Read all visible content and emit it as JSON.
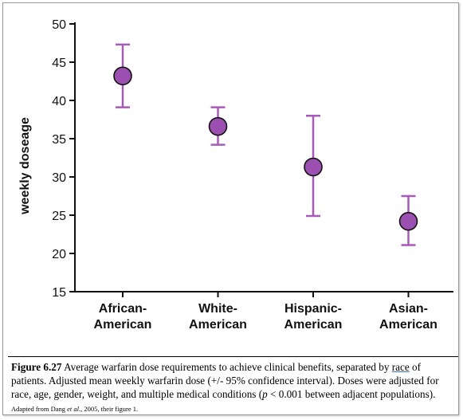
{
  "chart_data": {
    "type": "scatter",
    "title": "",
    "xlabel": "",
    "ylabel": "weekly doseage",
    "ylim": [
      15,
      50
    ],
    "yticks": [
      15,
      20,
      25,
      30,
      35,
      40,
      45,
      50
    ],
    "grid": false,
    "categories": [
      [
        "African-",
        "American"
      ],
      [
        "White-",
        "American"
      ],
      [
        "Hispanic-",
        "American"
      ],
      [
        "Asian-",
        "American"
      ]
    ],
    "series": [
      {
        "values": [
          43.2,
          36.6,
          31.3,
          24.2
        ],
        "ci_low": [
          39.1,
          34.2,
          24.9,
          21.1
        ],
        "ci_high": [
          47.3,
          39.1,
          38.0,
          27.5
        ]
      }
    ],
    "colors": {
      "marker": "#9b4fb0",
      "errorbar": "#a85ab8",
      "axis": "#111111"
    }
  },
  "caption": {
    "label": "Figure 6.27",
    "text1": " Average warfarin dose requirements to achieve clinical benefits, separated by ",
    "underlined": "race",
    "text2": "  of patients. Adjusted mean weekly warfarin dose (+/- 95% confidence interval). Doses were adjusted for race, age, gender, weight, and multiple medical conditions (",
    "p_symbol": "p",
    "text3": " < 0.001 between adjacent populations).",
    "small_prefix": "Adapted from Dang ",
    "small_etal": "et al",
    "small_suffix": "., 2005, their figure 1."
  }
}
